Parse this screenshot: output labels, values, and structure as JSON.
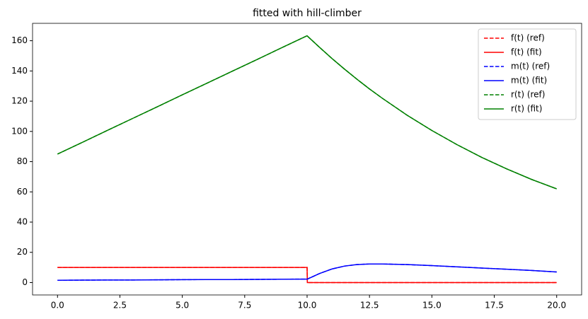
{
  "chart_data": {
    "type": "line",
    "title": "fitted with hill-climber",
    "x": [
      0,
      1,
      2,
      3,
      4,
      5,
      6,
      7,
      8,
      9,
      10,
      10.01,
      10.5,
      11,
      11.5,
      12,
      12.5,
      13,
      14,
      15,
      16,
      17,
      18,
      19,
      20
    ],
    "series": [
      {
        "name": "f(t) (ref)",
        "color": "#ff0000",
        "dashed": true,
        "values": [
          10,
          10,
          10,
          10,
          10,
          10,
          10,
          10,
          10,
          10,
          10,
          0,
          0,
          0,
          0,
          0,
          0,
          0,
          0,
          0,
          0,
          0,
          0,
          0,
          0
        ]
      },
      {
        "name": "f(t) (fit)",
        "color": "#ff0000",
        "dashed": false,
        "values": [
          10,
          10,
          10,
          10,
          10,
          10,
          10,
          10,
          10,
          10,
          10,
          0,
          0,
          0,
          0,
          0,
          0,
          0,
          0,
          0,
          0,
          0,
          0,
          0,
          0
        ]
      },
      {
        "name": "m(t) (ref)",
        "color": "#0000ff",
        "dashed": true,
        "values": [
          1.5,
          1.6,
          1.7,
          1.7,
          1.8,
          1.9,
          2.0,
          2.0,
          2.1,
          2.2,
          2.3,
          2.3,
          6.0,
          9.0,
          10.9,
          11.9,
          12.3,
          12.3,
          11.9,
          11.2,
          10.4,
          9.6,
          8.8,
          8.0,
          7.0
        ]
      },
      {
        "name": "m(t) (fit)",
        "color": "#0000ff",
        "dashed": false,
        "values": [
          1.5,
          1.6,
          1.7,
          1.7,
          1.8,
          1.9,
          2.0,
          2.0,
          2.1,
          2.2,
          2.3,
          2.3,
          6.0,
          9.0,
          10.9,
          11.9,
          12.3,
          12.3,
          11.9,
          11.2,
          10.4,
          9.6,
          8.8,
          8.0,
          7.0
        ]
      },
      {
        "name": "r(t) (ref)",
        "color": "#008000",
        "dashed": true,
        "values": [
          85,
          92.8,
          100.7,
          108.5,
          116.3,
          124.2,
          132,
          139.8,
          147.6,
          155.5,
          163.3,
          163.1,
          155.6,
          148.2,
          141.2,
          134.5,
          128.1,
          122.1,
          110.8,
          100.6,
          91.3,
          82.8,
          75.2,
          68.2,
          62.0
        ]
      },
      {
        "name": "r(t) (fit)",
        "color": "#008000",
        "dashed": false,
        "values": [
          85,
          92.8,
          100.7,
          108.5,
          116.3,
          124.2,
          132,
          139.8,
          147.6,
          155.5,
          163.3,
          163.1,
          155.6,
          148.2,
          141.2,
          134.5,
          128.1,
          122.1,
          110.8,
          100.6,
          91.3,
          82.8,
          75.2,
          68.2,
          62.0
        ]
      }
    ],
    "xlim": [
      -1,
      21
    ],
    "ylim": [
      -8.2,
      171.5
    ],
    "xticks": [
      {
        "value": 0,
        "label": "0.0"
      },
      {
        "value": 2.5,
        "label": "2.5"
      },
      {
        "value": 5,
        "label": "5.0"
      },
      {
        "value": 7.5,
        "label": "7.5"
      },
      {
        "value": 10,
        "label": "10.0"
      },
      {
        "value": 12.5,
        "label": "12.5"
      },
      {
        "value": 15,
        "label": "15.0"
      },
      {
        "value": 17.5,
        "label": "17.5"
      },
      {
        "value": 20,
        "label": "20.0"
      }
    ],
    "yticks": [
      0,
      20,
      40,
      60,
      80,
      100,
      120,
      140,
      160
    ],
    "grid": false,
    "legend": "upper-right"
  }
}
